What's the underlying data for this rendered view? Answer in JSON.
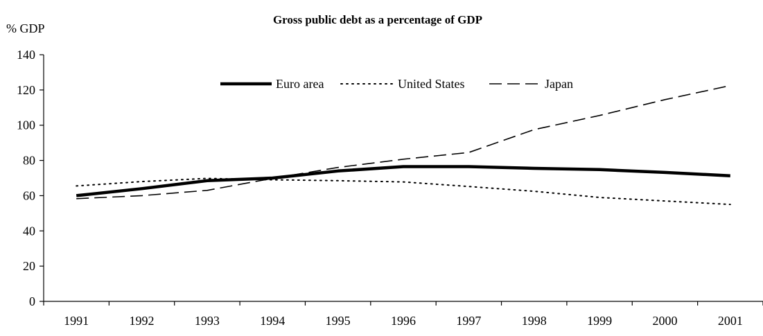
{
  "chart_data": {
    "type": "line",
    "title": "Gross public debt as a percentage of GDP",
    "ylabel": "% GDP",
    "xlabel": "",
    "categories": [
      "1991",
      "1992",
      "1993",
      "1994",
      "1995",
      "1996",
      "1997",
      "1998",
      "1999",
      "2000",
      "2001"
    ],
    "ylim": [
      0,
      140
    ],
    "yticks": [
      0,
      20,
      40,
      60,
      80,
      100,
      120,
      140
    ],
    "grid": false,
    "legend_position": "top-center",
    "series": [
      {
        "name": "Euro area",
        "style": "solid",
        "color": "#000000",
        "values": [
          60,
          64,
          68.5,
          70,
          74,
          76.5,
          76.5,
          75.5,
          74.8,
          73.2,
          71.3
        ]
      },
      {
        "name": "United States",
        "style": "dotted",
        "color": "#000000",
        "values": [
          65.5,
          68,
          69.8,
          69,
          68.5,
          67.8,
          65.2,
          62.5,
          59,
          57,
          55
        ]
      },
      {
        "name": "Japan",
        "style": "dashed",
        "color": "#000000",
        "values": [
          58.3,
          60,
          63,
          69.8,
          76,
          80.7,
          84.5,
          97.5,
          105.5,
          114.5,
          122.5
        ]
      }
    ]
  }
}
